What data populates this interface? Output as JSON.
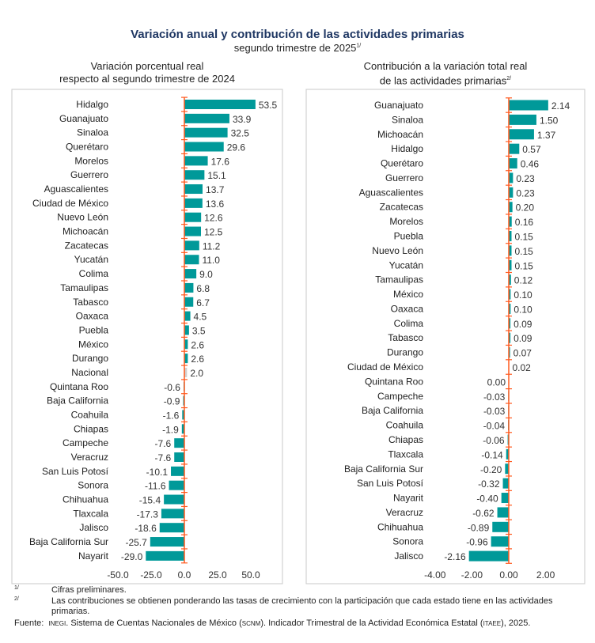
{
  "header": {
    "title": "Variación anual y contribución de las actividades primarias",
    "subtitle": "segundo trimestre de 2025",
    "subtitle_note": "1/"
  },
  "colors": {
    "bar": "#009999",
    "national": "#d0d0d0",
    "axis": "#ff5a1f"
  },
  "chart_data": [
    {
      "type": "bar",
      "orientation": "horizontal",
      "title_line1": "Variación porcentual real",
      "title_line2": "respecto al segundo trimestre de 2024",
      "categories": [
        "Hidalgo",
        "Guanajuato",
        "Sinaloa",
        "Querétaro",
        "Morelos",
        "Guerrero",
        "Aguascalientes",
        "Ciudad de México",
        "Nuevo León",
        "Michoacán",
        "Zacatecas",
        "Yucatán",
        "Colima",
        "Tamaulipas",
        "Tabasco",
        "Oaxaca",
        "Puebla",
        "México",
        "Durango",
        "Nacional",
        "Quintana Roo",
        "Baja California",
        "Coahuila",
        "Chiapas",
        "Campeche",
        "Veracruz",
        "San Luis Potosí",
        "Sonora",
        "Chihuahua",
        "Tlaxcala",
        "Jalisco",
        "Baja California Sur",
        "Nayarit"
      ],
      "values": [
        53.5,
        33.9,
        32.5,
        29.6,
        17.6,
        15.1,
        13.7,
        13.6,
        12.6,
        12.5,
        11.2,
        11.0,
        9.0,
        6.8,
        6.7,
        4.5,
        3.5,
        2.6,
        2.6,
        2.0,
        -0.6,
        -0.9,
        -1.6,
        -1.9,
        -7.6,
        -7.6,
        -10.1,
        -11.6,
        -15.4,
        -17.3,
        -18.6,
        -25.7,
        -29.0
      ],
      "labels": [
        "53.5",
        "33.9",
        "32.5",
        "29.6",
        "17.6",
        "15.1",
        "13.7",
        "13.6",
        "12.6",
        "12.5",
        "11.2",
        "11.0",
        "9.0",
        "6.8",
        "6.7",
        "4.5",
        "3.5",
        "2.6",
        "2.6",
        "2.0",
        "-0.6",
        "-0.9",
        "-1.6",
        "-1.9",
        "-7.6",
        "-7.6",
        "-10.1",
        "-11.6",
        "-15.4",
        "-17.3",
        "-18.6",
        "-25.7",
        "-29.0"
      ],
      "highlight": "Nacional",
      "xticks": [
        "-50.0",
        "-25.0",
        "0.0",
        "25.0",
        "50.0"
      ],
      "xtick_values": [
        -50,
        -25,
        0,
        25,
        50
      ],
      "xlim": [
        -50,
        65
      ]
    },
    {
      "type": "bar",
      "orientation": "horizontal",
      "title_line1": "Contribución a la variación total real",
      "title_line2": "de las actividades primarias",
      "title_note": "2/",
      "categories": [
        "Guanajuato",
        "Sinaloa",
        "Michoacán",
        "Hidalgo",
        "Querétaro",
        "Guerrero",
        "Aguascalientes",
        "Zacatecas",
        "Morelos",
        "Puebla",
        "Nuevo León",
        "Yucatán",
        "Tamaulipas",
        "México",
        "Oaxaca",
        "Colima",
        "Tabasco",
        "Durango",
        "Ciudad de México",
        "Quintana Roo",
        "Campeche",
        "Baja California",
        "Coahuila",
        "Chiapas",
        "Tlaxcala",
        "Baja California Sur",
        "San Luis Potosí",
        "Nayarit",
        "Veracruz",
        "Chihuahua",
        "Sonora",
        "Jalisco"
      ],
      "values": [
        2.14,
        1.5,
        1.37,
        0.57,
        0.46,
        0.23,
        0.23,
        0.2,
        0.16,
        0.15,
        0.15,
        0.15,
        0.12,
        0.1,
        0.1,
        0.09,
        0.09,
        0.07,
        0.02,
        0.0,
        -0.03,
        -0.03,
        -0.04,
        -0.06,
        -0.14,
        -0.2,
        -0.32,
        -0.4,
        -0.62,
        -0.89,
        -0.96,
        -2.16
      ],
      "labels": [
        "2.14",
        "1.50",
        "1.37",
        "0.57",
        "0.46",
        "0.23",
        "0.23",
        "0.20",
        "0.16",
        "0.15",
        "0.15",
        "0.15",
        "0.12",
        "0.10",
        "0.10",
        "0.09",
        "0.09",
        "0.07",
        "0.02",
        "0.00",
        "-0.03",
        "-0.03",
        "-0.04",
        "-0.06",
        "-0.14",
        "-0.20",
        "-0.32",
        "-0.40",
        "-0.62",
        "-0.89",
        "-0.96",
        "-2.16"
      ],
      "xticks": [
        "-4.00",
        "-2.00",
        "0.00",
        "2.00"
      ],
      "xtick_values": [
        -4,
        -2,
        0,
        2
      ],
      "xlim": [
        -4,
        2.5
      ]
    }
  ],
  "footnotes": {
    "n1_mark": "1/",
    "n1": "Cifras preliminares.",
    "n2_mark": "2/",
    "n2": "Las contribuciones se obtienen ponderando las tasas de crecimiento con la participación que cada estado tiene en las actividades primarias.",
    "source_label": "Fuente:",
    "source_org": "INEGI",
    "source_a": ". Sistema de Cuentas Nacionales de México (",
    "source_abbr1": "SCNM",
    "source_b": "). Indicador Trimestral de la Actividad Económica Estatal (",
    "source_abbr2": "ITAEE",
    "source_c": "), 2025."
  }
}
